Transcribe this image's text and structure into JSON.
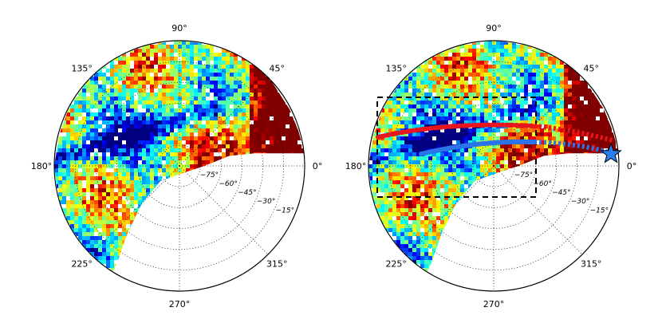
{
  "chart_data": [
    {
      "type": "heatmap",
      "projection": "polar (azimuth / elevation sky map)",
      "azimuth_tick_labels": [
        "0°",
        "45°",
        "90°",
        "135°",
        "180°",
        "225°",
        "270°",
        "315°"
      ],
      "elevation_ring_labels": [
        "−75°",
        "−60°",
        "−45°",
        "−30°",
        "−15°"
      ],
      "elevation_rings": [
        -75,
        -60,
        -45,
        -30,
        -15
      ],
      "colormap": "jet",
      "grid": true,
      "overlays": []
    },
    {
      "type": "heatmap",
      "projection": "polar (azimuth / elevation sky map)",
      "azimuth_tick_labels": [
        "0°",
        "45°",
        "90°",
        "135°",
        "180°",
        "225°",
        "270°",
        "315°"
      ],
      "elevation_ring_labels": [
        "−75°",
        "−60°",
        "−45°",
        "−30°",
        "−15°"
      ],
      "elevation_rings": [
        -75,
        -60,
        -45,
        -30,
        -15
      ],
      "colormap": "jet",
      "grid": true,
      "overlays": [
        {
          "kind": "dashed-rectangle",
          "color": "#000000"
        },
        {
          "kind": "track",
          "color": "#e8141e",
          "style": "solid then dotted"
        },
        {
          "kind": "track",
          "color": "#2a73e8",
          "style": "solid then dotted"
        },
        {
          "kind": "star-marker",
          "color": "#2a7ff0",
          "location": "near 0° azimuth"
        }
      ]
    }
  ],
  "colors": {
    "jet_low": "#00008b",
    "jet_high": "#800000",
    "red_track": "#e8141e",
    "blue_track": "#2a73e8",
    "star": "#2a7ff0"
  }
}
